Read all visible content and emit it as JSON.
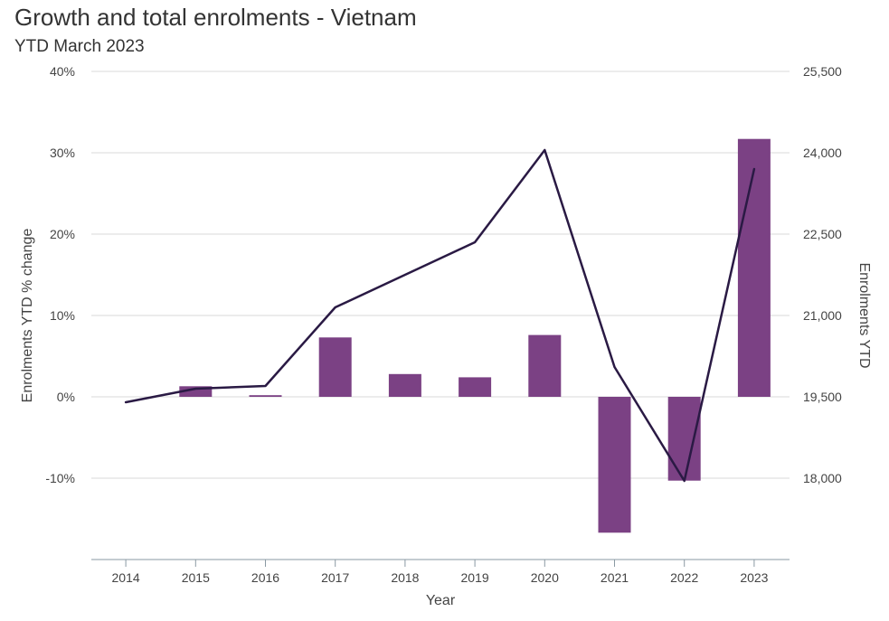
{
  "title": "Growth and total enrolments - Vietnam",
  "subtitle": "YTD March 2023",
  "colors": {
    "bar": "#7b4184",
    "line": "#2a1a44",
    "grid": "#d9d9d9",
    "axis": "#8a9aa3",
    "text": "#444444"
  },
  "chart_data": {
    "type": "bar",
    "title": "Growth and total enrolments - Vietnam",
    "subtitle": "YTD March 2023",
    "xlabel": "Year",
    "ylabel_left": "Enrolments YTD % change",
    "ylabel_right": "Enrolments YTD",
    "categories": [
      "2014",
      "2015",
      "2016",
      "2017",
      "2018",
      "2019",
      "2020",
      "2021",
      "2022",
      "2023"
    ],
    "left_axis": {
      "ylim": [
        -20,
        40
      ],
      "ticks": [
        40,
        30,
        20,
        10,
        0,
        -10
      ],
      "tick_labels": [
        "40%",
        "30%",
        "20%",
        "10%",
        "0%",
        "-10%"
      ]
    },
    "right_axis": {
      "ylim": [
        16500,
        25500
      ],
      "ticks": [
        25500,
        24000,
        22500,
        21000,
        19500,
        18000
      ],
      "tick_labels": [
        "25,500",
        "24,000",
        "22,500",
        "21,000",
        "19,500",
        "18,000"
      ]
    },
    "series": [
      {
        "type": "bar",
        "axis": "left",
        "values": [
          null,
          1.3,
          0.2,
          7.3,
          2.8,
          2.4,
          7.6,
          -16.7,
          -10.3,
          31.7
        ]
      },
      {
        "type": "line",
        "axis": "right",
        "values": [
          19400,
          19650,
          19700,
          21150,
          21750,
          22350,
          24050,
          20050,
          17950,
          23700
        ]
      }
    ],
    "grid": true,
    "legend": "none"
  }
}
